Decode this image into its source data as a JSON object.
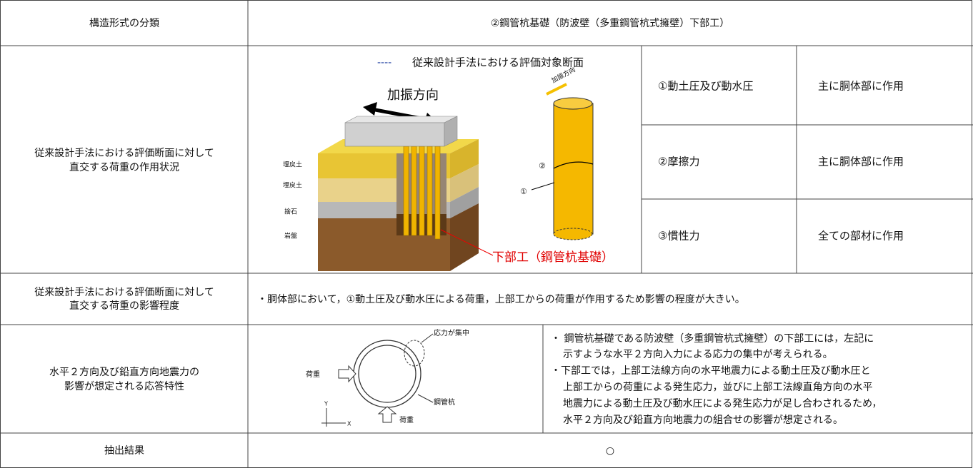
{
  "header": {
    "label": "構造形式の分類",
    "value": "②鋼管杭基礎（防波壁（多重鋼管杭式擁壁）下部工）"
  },
  "loading": {
    "label_lines": [
      "従来設計手法における評価断面に対して",
      "直交する荷重の作用状況"
    ],
    "figure": {
      "legend_marker": "----",
      "legend": "従来設計手法における評価対象断面",
      "direction": "加振方向",
      "direction_small": "加振方向",
      "layers": [
        "埋戻土",
        "埋戻土",
        "捨石",
        "岩盤"
      ],
      "markers": [
        "②",
        "①"
      ],
      "callout": "下部工（鋼管杭基礎）"
    },
    "forces": [
      [
        "①動土圧及び動水圧",
        "主に胴体部に作用"
      ],
      [
        "②摩擦力",
        "主に胴体部に作用"
      ],
      [
        "③慣性力",
        "全ての部材に作用"
      ]
    ]
  },
  "impact": {
    "label_lines": [
      "従来設計手法における評価断面に対して",
      "直交する荷重の影響程度"
    ],
    "text": "・胴体部において，①動土圧及び動水圧による荷重，上部工からの荷重が作用するため影響の程度が大きい。"
  },
  "response": {
    "label_lines": [
      "水平２方向及び鉛直方向地震力の",
      "影響が想定される応答特性"
    ],
    "figure": {
      "load_left": "荷重",
      "load_bottom": "荷重",
      "stress": "応力が集中",
      "pipe": "鋼管杭",
      "axis_y": "Y",
      "axis_x": "X"
    },
    "text_lines": [
      "・ 鋼管杭基礎である防波壁（多重鋼管杭式擁壁）の下部工には，左記に",
      "示すような水平２方向入力による応力の集中が考えられる。",
      "・下部工では，上部工法線方向の水平地震力による動土圧及び動水圧と",
      "上部工からの荷重による発生応力，並びに上部工法線直角方向の水平",
      "地震力による動土圧及び動水圧による発生応力が足し合わされるため，",
      "水平２方向及び鉛直方向地震力の組合せの影響が想定される。"
    ]
  },
  "result": {
    "label": "抽出結果",
    "value": "○"
  }
}
